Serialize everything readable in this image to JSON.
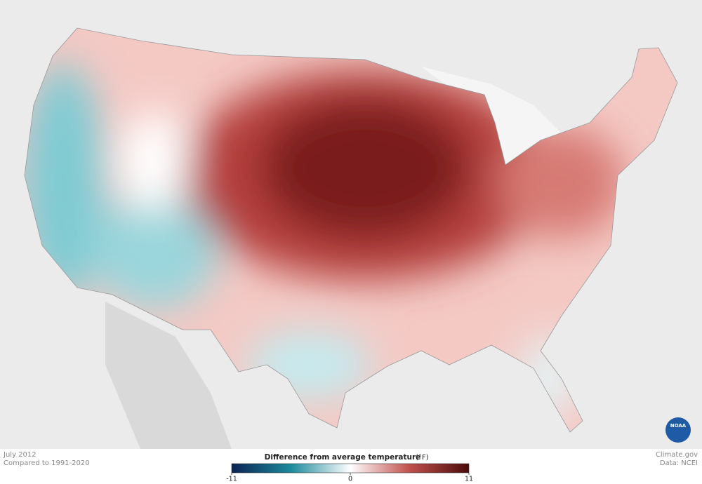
{
  "footer": {
    "date": "July 2012",
    "baseline": "Compared to 1991-2020",
    "credit": "Climate.gov",
    "source": "Data: NCEI"
  },
  "legend": {
    "title": "Difference from average temperature",
    "unit": "(°F)",
    "range": [
      -11,
      11
    ],
    "ticks": [
      -11,
      0,
      11
    ],
    "colors": [
      "#0b2352",
      "#1c8a9c",
      "#ffffff",
      "#c0504d",
      "#4a0b0b"
    ]
  },
  "logo": "NOAA"
}
